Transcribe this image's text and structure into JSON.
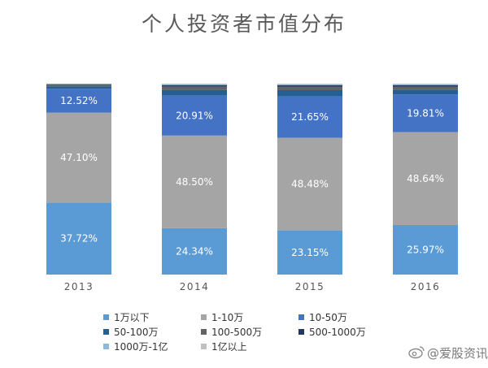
{
  "chart_data": {
    "type": "bar",
    "stacked": true,
    "title": "个人投资者市值分布",
    "categories": [
      "2013",
      "2014",
      "2015",
      "2016"
    ],
    "ylim": [
      0,
      100
    ],
    "grid": false,
    "legend_position": "bottom",
    "series": [
      {
        "name": "1万以下",
        "color": "#5b9bd5",
        "values": [
          37.72,
          24.34,
          23.15,
          25.97
        ],
        "labels": [
          "37.72%",
          "24.34%",
          "23.15%",
          "25.97%"
        ]
      },
      {
        "name": "1-10万",
        "color": "#a5a5a5",
        "values": [
          47.1,
          48.5,
          48.48,
          48.64
        ],
        "labels": [
          "47.10%",
          "48.50%",
          "48.48%",
          "48.64%"
        ]
      },
      {
        "name": "10-50万",
        "color": "#4472c4",
        "values": [
          12.52,
          20.91,
          21.65,
          19.81
        ],
        "labels": [
          "12.52%",
          "20.91%",
          "21.65%",
          "19.81%"
        ]
      },
      {
        "name": "50-100万",
        "color": "#255e91",
        "values": [
          1.3,
          3.0,
          3.3,
          2.5
        ],
        "labels": [
          "",
          "",
          "",
          ""
        ]
      },
      {
        "name": "100-500万",
        "color": "#636363",
        "values": [
          0.8,
          1.8,
          1.9,
          1.6
        ],
        "labels": [
          "",
          "",
          "",
          ""
        ]
      },
      {
        "name": "500-1000万",
        "color": "#203864",
        "values": [
          0.3,
          0.7,
          0.7,
          0.7
        ],
        "labels": [
          "",
          "",
          "",
          ""
        ]
      },
      {
        "name": "1000万-1亿",
        "color": "#8fb8e0",
        "values": [
          0.2,
          0.5,
          0.5,
          0.5
        ],
        "labels": [
          "",
          "",
          "",
          ""
        ]
      },
      {
        "name": "1亿以上",
        "color": "#c0c0c0",
        "values": [
          0.06,
          0.25,
          0.31,
          0.28
        ],
        "labels": [
          "",
          "",
          "",
          ""
        ]
      }
    ]
  },
  "watermark": {
    "text": "@爱股资讯",
    "icon": "weibo-icon"
  }
}
